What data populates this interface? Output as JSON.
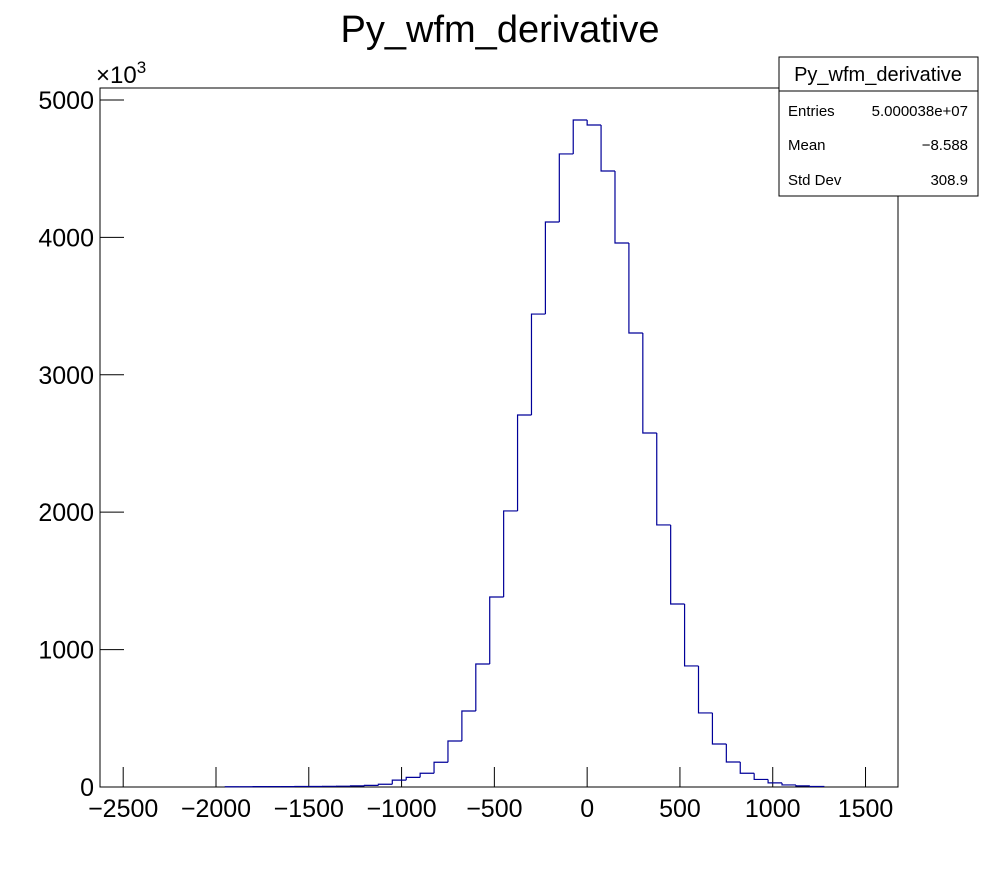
{
  "chart_data": {
    "type": "histogram",
    "title": "Py_wfm_derivative",
    "y_multiplier": {
      "base": "×10",
      "exponent": "3"
    },
    "bins": [
      -1950,
      -1875,
      -1800,
      -1725,
      -1650,
      -1575,
      -1500,
      -1425,
      -1350,
      -1275,
      -1200,
      -1125,
      -1050,
      -975,
      -900,
      -825,
      -750,
      -675,
      -600,
      -525,
      -450,
      -375,
      -300,
      -225,
      -150,
      -75,
      0,
      75,
      150,
      225,
      300,
      375,
      450,
      525,
      600,
      675,
      750,
      825,
      900,
      975,
      1050,
      1125,
      1200,
      1275
    ],
    "values": [
      2,
      2,
      3,
      3,
      3,
      4,
      4,
      5,
      6,
      8,
      12,
      20,
      50,
      70,
      100,
      180,
      335,
      553,
      895,
      1383,
      2009,
      2707,
      3442,
      4112,
      4607,
      4854,
      4818,
      4483,
      3959,
      3304,
      2576,
      1907,
      1332,
      881,
      539,
      313,
      182,
      100,
      55,
      30,
      15,
      8,
      4
    ],
    "color": "#000099",
    "xlim": [
      -2625,
      1675
    ],
    "ylim": [
      0,
      5087
    ],
    "xticks": [
      {
        "value": -2500,
        "label": "−2500"
      },
      {
        "value": -2000,
        "label": "−2000"
      },
      {
        "value": -1500,
        "label": "−1500"
      },
      {
        "value": -1000,
        "label": "−1000"
      },
      {
        "value": -500,
        "label": "−500"
      },
      0,
      500,
      1000,
      1500
    ],
    "yticks": [
      0,
      1000,
      2000,
      3000,
      4000,
      5000
    ],
    "stats": {
      "title": "Py_wfm_derivative",
      "rows": [
        [
          "Entries",
          "5.000038e+07"
        ],
        [
          "Mean",
          "−8.588"
        ],
        [
          "Std Dev",
          "308.9"
        ]
      ]
    }
  }
}
